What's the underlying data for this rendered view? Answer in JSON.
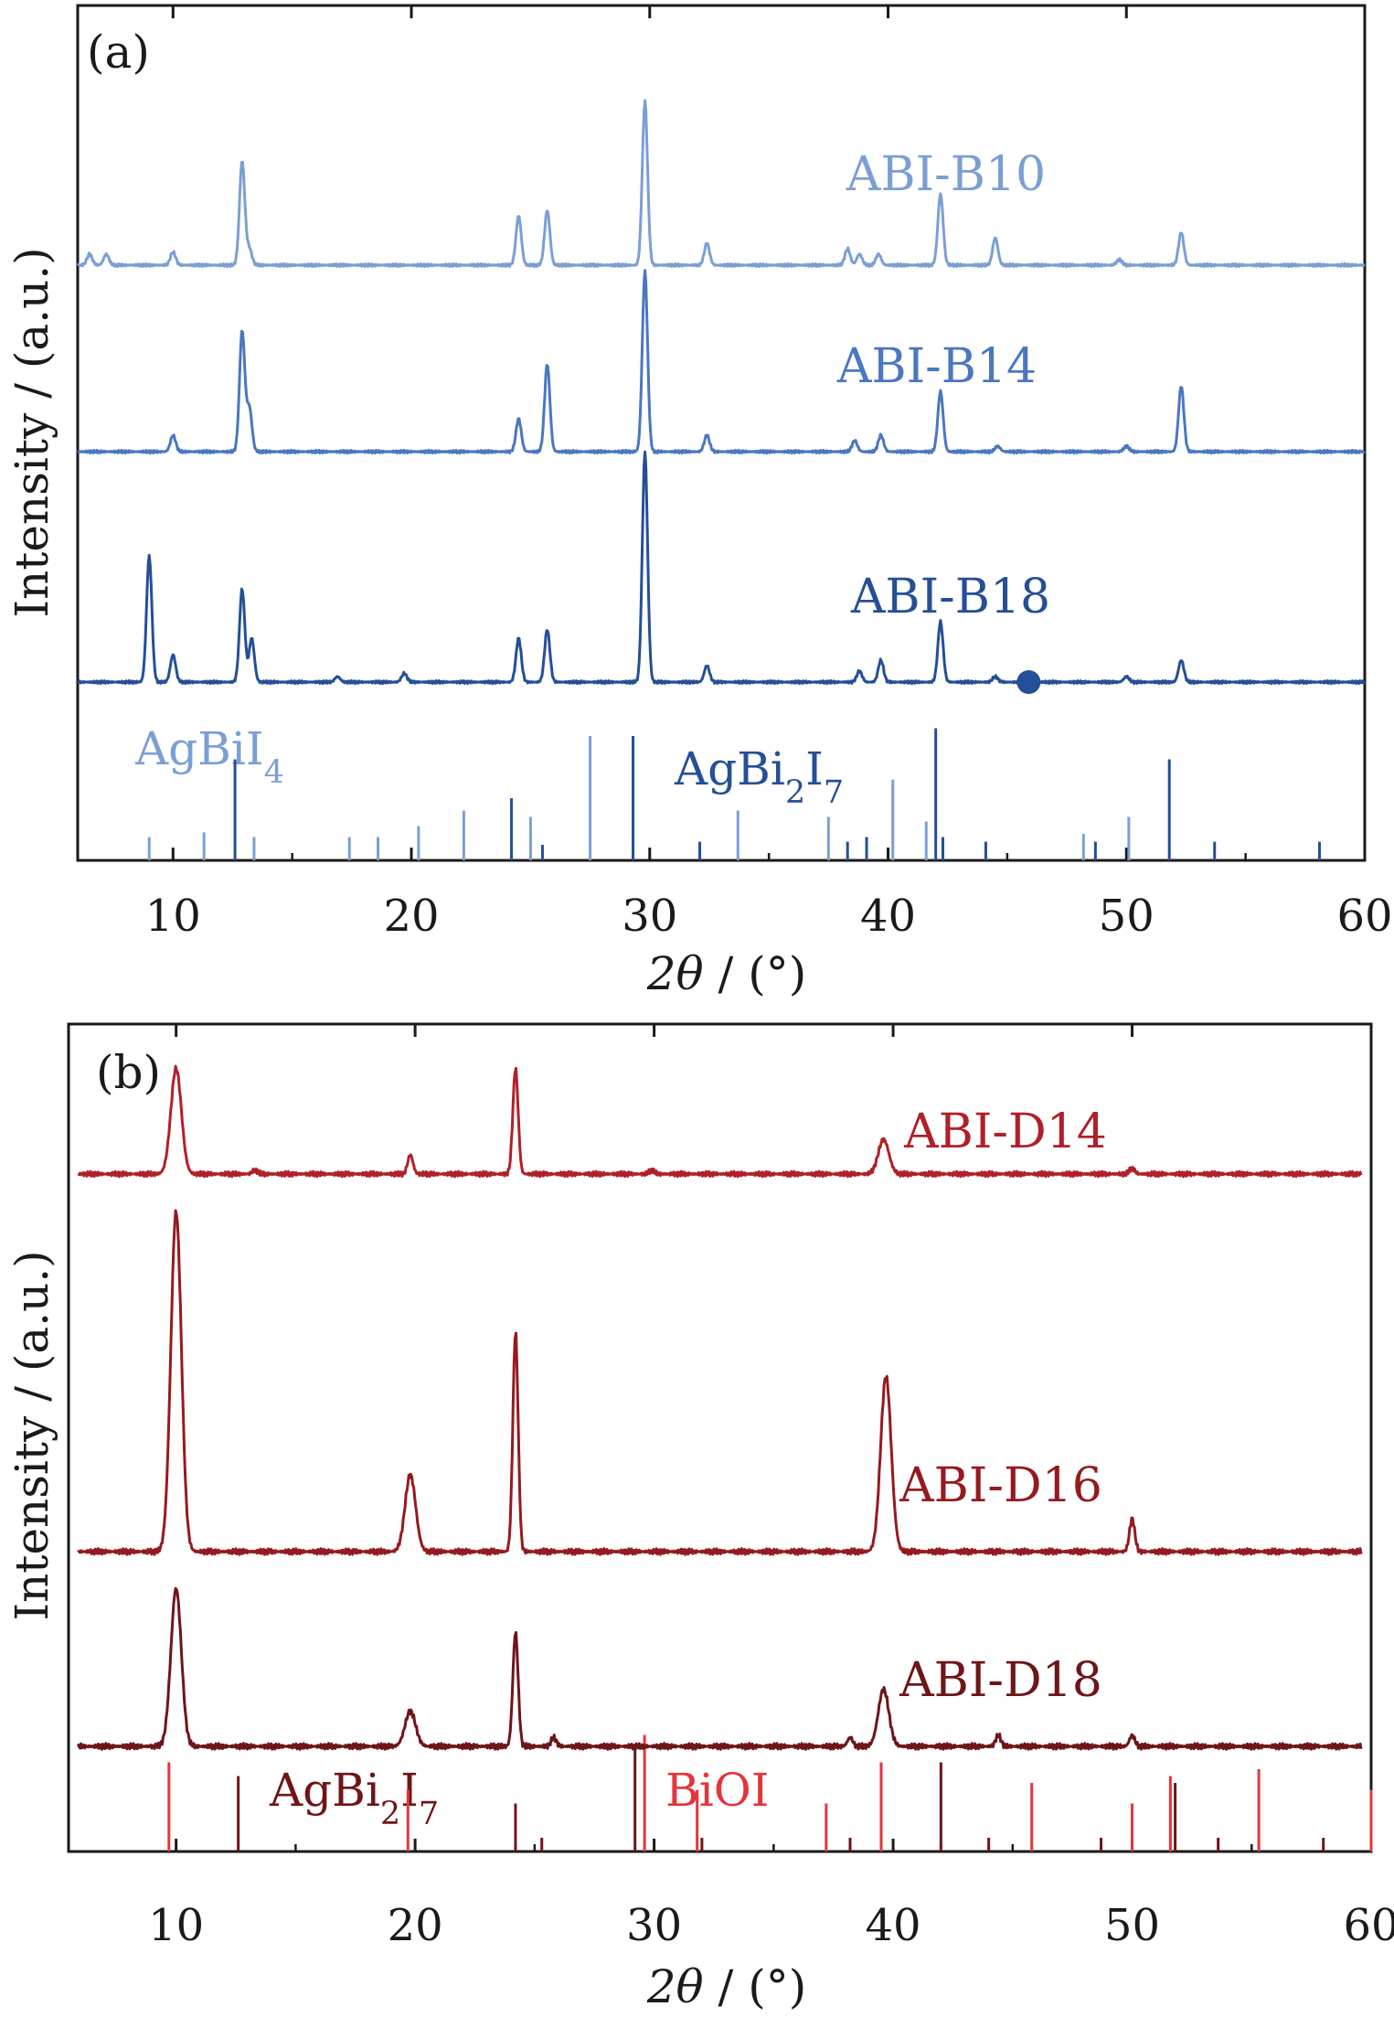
{
  "chart_data": [
    {
      "type": "line",
      "panel_label": "(a)",
      "xlabel": "2θ / (°)",
      "ylabel": "Intensity / (a.u.)",
      "xlim": [
        6,
        60
      ],
      "x_ticks": [
        10,
        20,
        30,
        40,
        50,
        60
      ],
      "series": [
        {
          "name": "ABI-B10",
          "color": "#7b9fd3",
          "peaks": [
            [
              6.5,
              0.1
            ],
            [
              7.2,
              0.1
            ],
            [
              10.0,
              0.12
            ],
            [
              12.9,
              0.95
            ],
            [
              13.2,
              0.15
            ],
            [
              24.5,
              0.45
            ],
            [
              25.7,
              0.5
            ],
            [
              29.8,
              1.5
            ],
            [
              32.4,
              0.2
            ],
            [
              38.3,
              0.15
            ],
            [
              38.8,
              0.1
            ],
            [
              39.6,
              0.1
            ],
            [
              42.2,
              0.65
            ],
            [
              44.5,
              0.25
            ],
            [
              49.7,
              0.05
            ],
            [
              52.3,
              0.3
            ]
          ]
        },
        {
          "name": "ABI-B14",
          "color": "#4a77c0",
          "peaks": [
            [
              10.0,
              0.15
            ],
            [
              12.9,
              1.1
            ],
            [
              13.2,
              0.4
            ],
            [
              24.5,
              0.3
            ],
            [
              25.7,
              0.8
            ],
            [
              29.8,
              1.65
            ],
            [
              32.4,
              0.15
            ],
            [
              38.6,
              0.1
            ],
            [
              39.7,
              0.15
            ],
            [
              42.2,
              0.55
            ],
            [
              44.6,
              0.05
            ],
            [
              50.0,
              0.05
            ],
            [
              52.3,
              0.6
            ]
          ]
        },
        {
          "name": "ABI-B18",
          "color": "#254f96",
          "peaks": [
            [
              9.0,
              1.15
            ],
            [
              10.0,
              0.25
            ],
            [
              12.9,
              0.85
            ],
            [
              13.3,
              0.4
            ],
            [
              16.9,
              0.05
            ],
            [
              19.7,
              0.08
            ],
            [
              24.5,
              0.4
            ],
            [
              25.7,
              0.48
            ],
            [
              29.8,
              2.1
            ],
            [
              32.4,
              0.15
            ],
            [
              38.8,
              0.1
            ],
            [
              39.7,
              0.2
            ],
            [
              42.2,
              0.55
            ],
            [
              44.5,
              0.05
            ],
            [
              50.0,
              0.05
            ],
            [
              52.3,
              0.2
            ]
          ]
        }
      ],
      "marker": {
        "x": 45.9,
        "series": "ABI-B18",
        "color": "#254f96"
      },
      "reference_phases": [
        {
          "name": "AgBiI4",
          "label_html": "AgBiI<tspan baseline-shift='sub' font-size='70%'>4</tspan>",
          "color": "#7b9fd3",
          "sticks": [
            [
              9.0,
              0.15
            ],
            [
              11.3,
              0.18
            ],
            [
              13.4,
              0.15
            ],
            [
              17.4,
              0.15
            ],
            [
              18.6,
              0.15
            ],
            [
              20.3,
              0.22
            ],
            [
              22.2,
              0.32
            ],
            [
              25.0,
              0.28
            ],
            [
              27.5,
              0.8
            ],
            [
              33.7,
              0.32
            ],
            [
              37.5,
              0.28
            ],
            [
              40.2,
              0.52
            ],
            [
              41.6,
              0.25
            ],
            [
              48.2,
              0.17
            ],
            [
              50.1,
              0.28
            ]
          ]
        },
        {
          "name": "AgBi2I7",
          "label_html": "AgBi<tspan baseline-shift='sub' font-size='70%'>2</tspan>I<tspan baseline-shift='sub' font-size='70%'>7</tspan>",
          "color": "#254f96",
          "sticks": [
            [
              12.6,
              0.65
            ],
            [
              24.2,
              0.4
            ],
            [
              25.5,
              0.1
            ],
            [
              29.3,
              0.8
            ],
            [
              32.1,
              0.12
            ],
            [
              38.3,
              0.12
            ],
            [
              39.1,
              0.15
            ],
            [
              42.0,
              0.85
            ],
            [
              42.3,
              0.15
            ],
            [
              44.1,
              0.12
            ],
            [
              48.7,
              0.12
            ],
            [
              51.8,
              0.65
            ],
            [
              53.7,
              0.12
            ],
            [
              58.1,
              0.12
            ]
          ]
        }
      ]
    },
    {
      "type": "line",
      "panel_label": "(b)",
      "xlabel": "2θ / (°)",
      "ylabel": "Intensity / (a.u.)",
      "xlim": [
        5.5,
        60
      ],
      "x_ticks": [
        10,
        20,
        30,
        40,
        50,
        60
      ],
      "series": [
        {
          "name": "ABI-D14",
          "color": "#b0202a",
          "peaks": [
            [
              10.0,
              0.55
            ],
            [
              13.3,
              0.02
            ],
            [
              19.8,
              0.1
            ],
            [
              24.2,
              0.55
            ],
            [
              29.9,
              0.02
            ],
            [
              39.6,
              0.18
            ],
            [
              50.0,
              0.03
            ]
          ]
        },
        {
          "name": "ABI-D16",
          "color": "#951a1f",
          "peaks": [
            [
              10.0,
              1.55
            ],
            [
              19.8,
              0.35
            ],
            [
              24.2,
              1.0
            ],
            [
              39.7,
              0.8
            ],
            [
              50.0,
              0.15
            ]
          ]
        },
        {
          "name": "ABI-D18",
          "color": "#6e1518",
          "peaks": [
            [
              10.0,
              0.72
            ],
            [
              19.8,
              0.16
            ],
            [
              24.2,
              0.52
            ],
            [
              25.8,
              0.04
            ],
            [
              38.2,
              0.04
            ],
            [
              39.6,
              0.26
            ],
            [
              44.4,
              0.05
            ],
            [
              50.0,
              0.05
            ]
          ]
        }
      ],
      "reference_phases": [
        {
          "name": "AgBi2I7",
          "label_html": "AgBi<tspan baseline-shift='sub' font-size='70%'>2</tspan>I<tspan baseline-shift='sub' font-size='70%'>7</tspan>",
          "color": "#6e1518",
          "sticks": [
            [
              12.6,
              0.55
            ],
            [
              24.2,
              0.35
            ],
            [
              25.3,
              0.1
            ],
            [
              29.2,
              0.75
            ],
            [
              32.0,
              0.1
            ],
            [
              38.2,
              0.1
            ],
            [
              42.0,
              0.65
            ],
            [
              44.0,
              0.1
            ],
            [
              48.7,
              0.1
            ],
            [
              51.8,
              0.5
            ],
            [
              53.6,
              0.1
            ],
            [
              58.0,
              0.1
            ]
          ]
        },
        {
          "name": "BiOI",
          "label_html": "BiOI",
          "color": "#e4353c",
          "sticks": [
            [
              9.7,
              0.65
            ],
            [
              19.7,
              0.45
            ],
            [
              29.6,
              0.85
            ],
            [
              31.8,
              0.45
            ],
            [
              37.2,
              0.35
            ],
            [
              39.5,
              0.65
            ],
            [
              45.8,
              0.5
            ],
            [
              50.0,
              0.35
            ],
            [
              51.6,
              0.55
            ],
            [
              55.3,
              0.6
            ],
            [
              60.0,
              0.45
            ]
          ]
        }
      ]
    }
  ]
}
